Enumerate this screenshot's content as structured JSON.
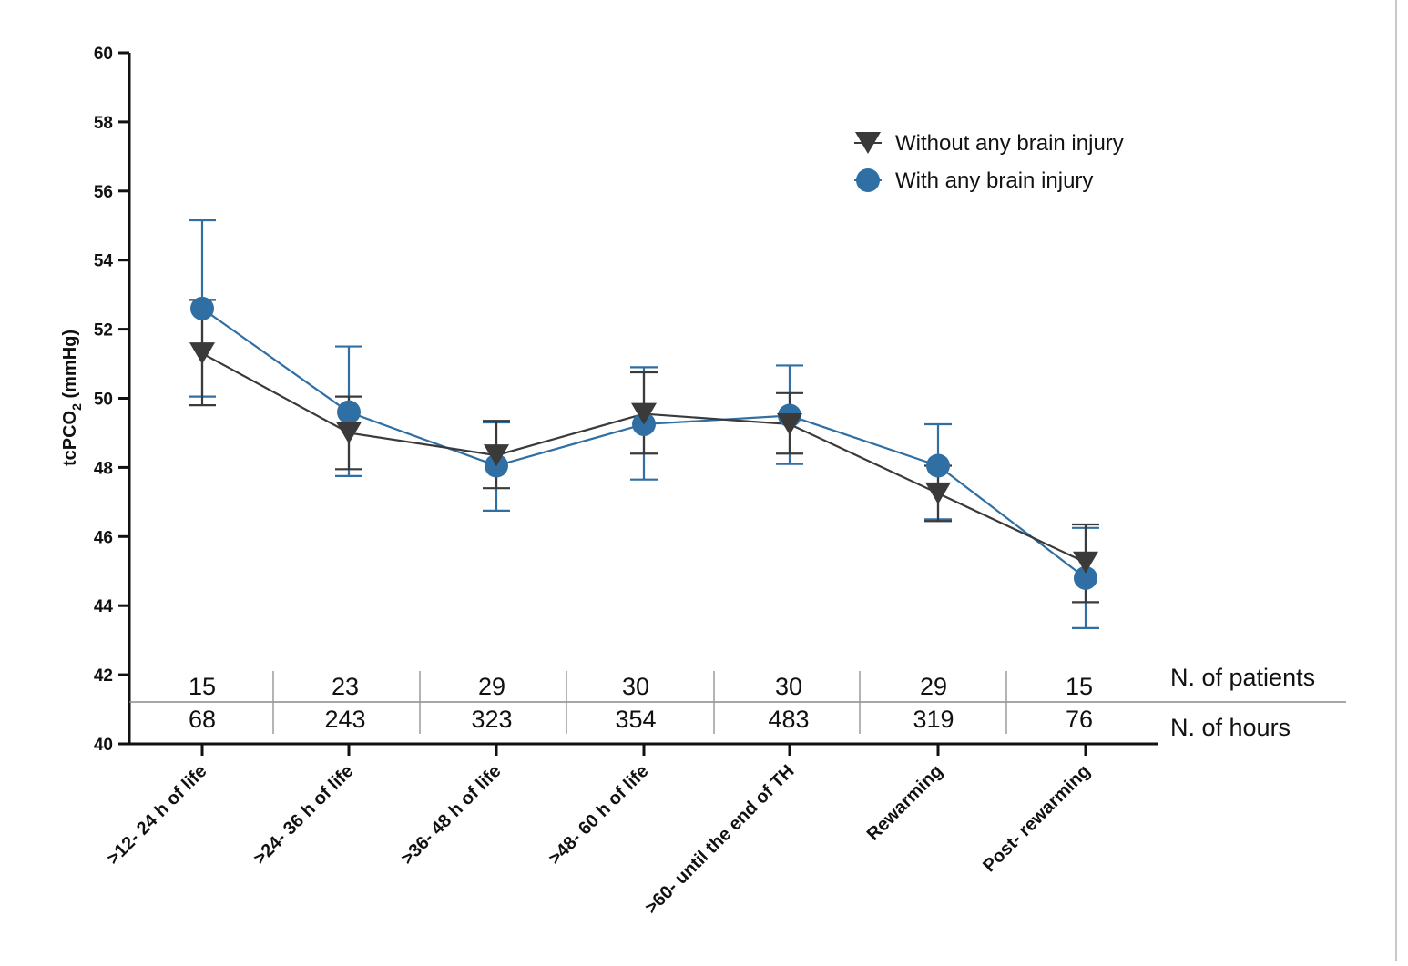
{
  "chart_data": {
    "type": "line",
    "ylabel": "tcPCO2 (mmHg)",
    "ylabel_parts": {
      "main": "tcPCO",
      "sub": "2",
      "unit": " (mmHg)"
    },
    "ylim": [
      40,
      60
    ],
    "yticks": [
      "40",
      "42",
      "44",
      "46",
      "48",
      "50",
      "52",
      "54",
      "56",
      "58",
      "60"
    ],
    "categories": [
      ">12- 24 h of life",
      ">24- 36 h of life",
      ">36- 48 h of life",
      ">48- 60 h of life",
      ">60- until the end of TH",
      "Rewarming",
      "Post- rewarming"
    ],
    "series": [
      {
        "name": "Without any brain injury",
        "marker": "triangle-down",
        "color": "#3a3a3a",
        "values": [
          51.3,
          49.0,
          48.35,
          49.55,
          49.25,
          47.25,
          45.25
        ],
        "err_upper": [
          52.85,
          50.05,
          49.35,
          50.75,
          50.15,
          48.05,
          46.35
        ],
        "err_lower": [
          49.8,
          47.95,
          47.4,
          48.4,
          48.4,
          46.45,
          44.1
        ]
      },
      {
        "name": "With any brain injury",
        "marker": "circle",
        "color": "#2f6fa3",
        "values": [
          52.6,
          49.6,
          48.05,
          49.25,
          49.5,
          48.05,
          44.8
        ],
        "err_upper": [
          55.15,
          51.5,
          49.3,
          50.9,
          50.95,
          49.25,
          46.25
        ],
        "err_lower": [
          50.05,
          47.75,
          46.75,
          47.65,
          48.1,
          46.5,
          43.35
        ]
      }
    ],
    "legend_position": "top-right",
    "grid": false,
    "table": {
      "patients_label": "N. of patients",
      "hours_label": "N. of hours",
      "patients": [
        "15",
        "23",
        "29",
        "30",
        "30",
        "29",
        "15"
      ],
      "hours": [
        "68",
        "243",
        "323",
        "354",
        "483",
        "319",
        "76"
      ]
    }
  }
}
